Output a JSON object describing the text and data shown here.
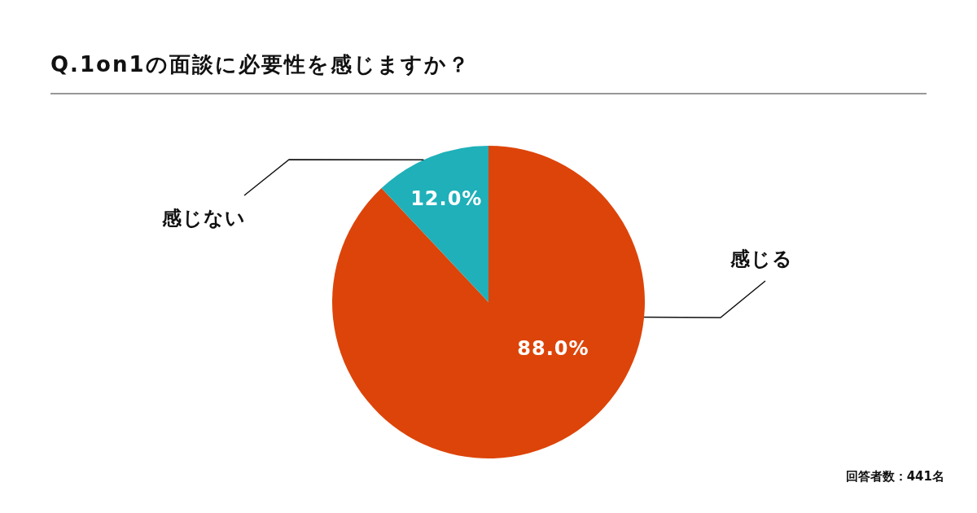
{
  "chart_data": {
    "type": "pie",
    "title": "Q.1on1の面談に必要性を感じますか？",
    "categories": [
      "感じる",
      "感じない"
    ],
    "values": [
      88.0,
      12.0
    ],
    "colors": [
      "#dd4409",
      "#1fb0b9"
    ],
    "value_labels": [
      "88.0%",
      "12.0%"
    ],
    "annotations": [
      "回答者数：441名"
    ]
  }
}
